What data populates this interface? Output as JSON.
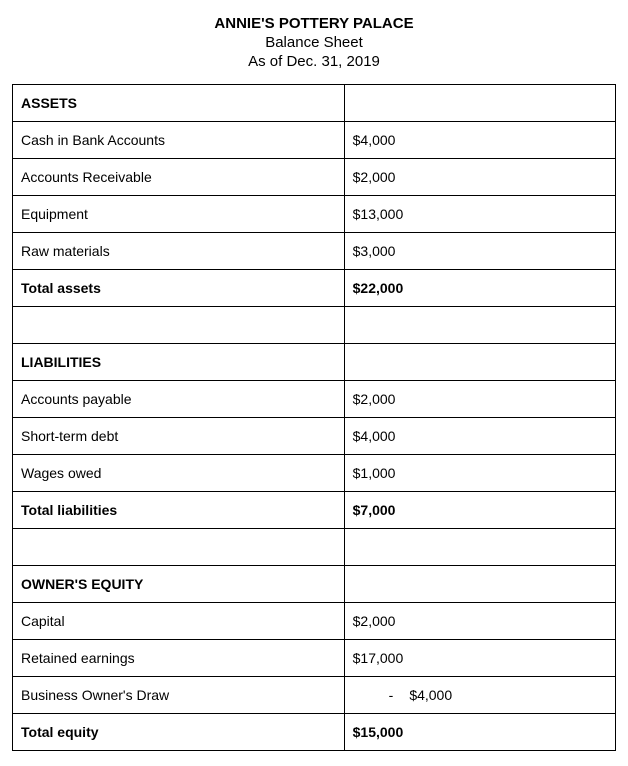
{
  "header": {
    "company_name": "ANNIE'S POTTERY PALACE",
    "doc_title": "Balance Sheet",
    "as_of": "As of Dec. 31, 2019"
  },
  "sections": {
    "assets": {
      "heading": "ASSETS",
      "rows": [
        {
          "label": "Cash in Bank Accounts",
          "value": "$4,000"
        },
        {
          "label": "Accounts Receivable",
          "value": "$2,000"
        },
        {
          "label": "Equipment",
          "value": "$13,000"
        },
        {
          "label": "Raw materials",
          "value": "$3,000"
        }
      ],
      "total": {
        "label": "Total assets",
        "value": "$22,000"
      }
    },
    "liabilities": {
      "heading": "LIABILITIES",
      "rows": [
        {
          "label": "Accounts payable",
          "value": "$2,000"
        },
        {
          "label": "Short-term debt",
          "value": "$4,000"
        },
        {
          "label": "Wages owed",
          "value": "$1,000"
        }
      ],
      "total": {
        "label": "Total liabilities",
        "value": "$7,000"
      }
    },
    "equity": {
      "heading": "OWNER'S EQUITY",
      "rows": [
        {
          "label": "Capital",
          "value": "$2,000"
        },
        {
          "label": "Retained earnings",
          "value": "$17,000"
        }
      ],
      "owners_draw": {
        "label": "Business Owner's Draw",
        "dash": "-",
        "value": "$4,000"
      },
      "total": {
        "label": "Total equity",
        "value": "$15,000"
      }
    }
  },
  "styling": {
    "font_family": "Arial, Helvetica, sans-serif",
    "background_color": "#ffffff",
    "text_color": "#000000",
    "border_color": "#000000",
    "header_fontsize": 15,
    "cell_fontsize": 14,
    "table_columns": [
      "label",
      "value"
    ],
    "label_col_width": "55%",
    "value_col_width": "45%"
  }
}
